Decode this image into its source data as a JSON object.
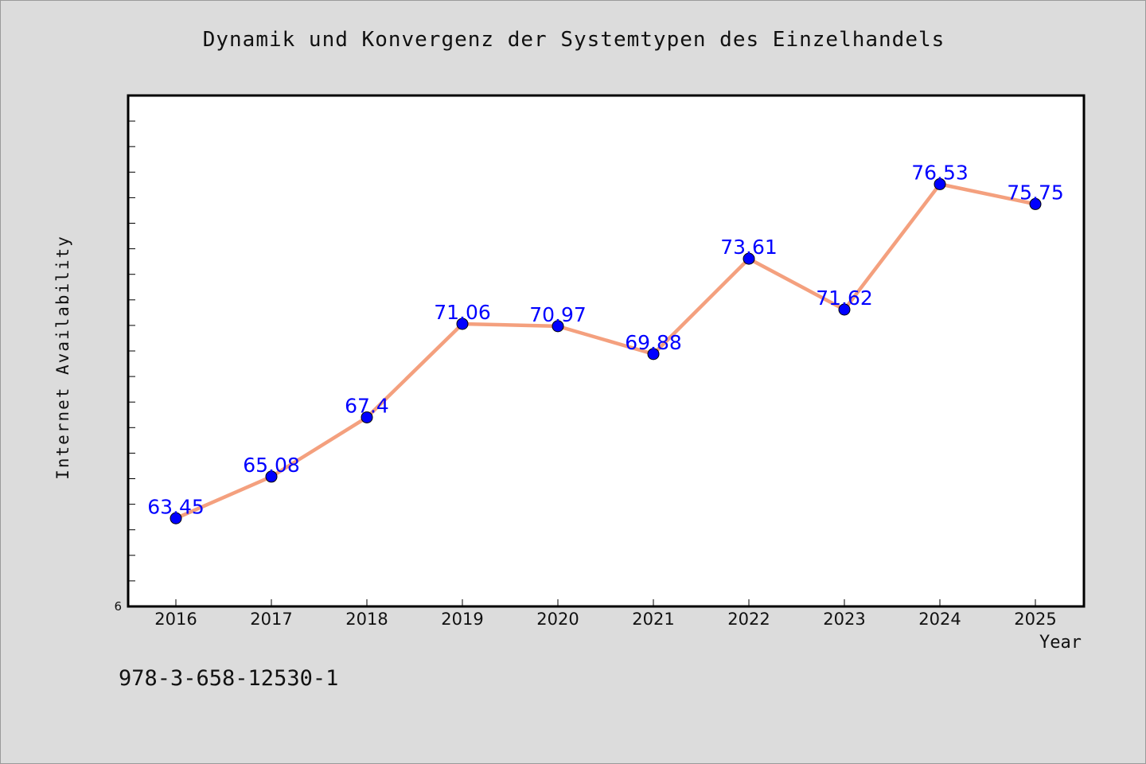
{
  "chart_data": {
    "type": "line",
    "title": "Dynamik und Konvergenz der Systemtypen des Einzelhandels",
    "xlabel": "Year",
    "ylabel": "Internet Availability",
    "categories": [
      "2016",
      "2017",
      "2018",
      "2019",
      "2020",
      "2021",
      "2022",
      "2023",
      "2024",
      "2025"
    ],
    "series": [
      {
        "values": [
          63.45,
          65.08,
          67.4,
          71.06,
          70.97,
          69.88,
          73.61,
          71.62,
          76.53,
          75.75
        ],
        "labels": [
          "63.45",
          "65.08",
          "67.4",
          "71.06",
          "70.97",
          "69.88",
          "73.61",
          "71.62",
          "76.53",
          "75.75"
        ]
      }
    ],
    "y_tick_labels": [
      "6"
    ],
    "ylim": [
      60,
      80
    ],
    "grid": false,
    "line_color": "#f4a07e",
    "marker_color": "#0000ff",
    "label_color": "#0000ff"
  },
  "footer": {
    "code": "978-3-658-12530-1"
  }
}
